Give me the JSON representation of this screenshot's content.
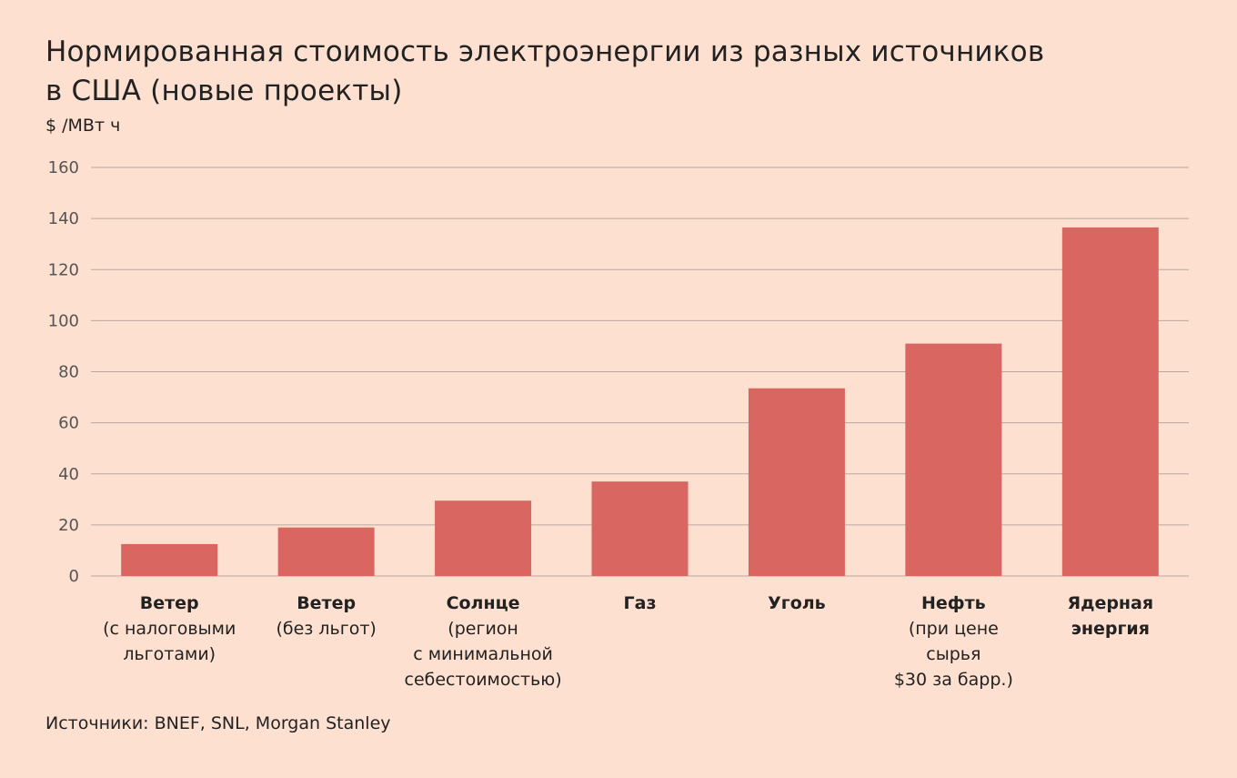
{
  "title_lines": [
    "Нормированная стоимость электроэнергии из разных источников",
    "в США (новые проекты)"
  ],
  "unit": "$ /МВт ч",
  "source": "Источники: BNEF, SNL, Morgan Stanley",
  "colors": {
    "background": "#fde0d0",
    "bar": "#d96660",
    "grid": "#b8a8a0",
    "text": "#222222",
    "tick": "#555555"
  },
  "chart_data": {
    "type": "bar",
    "title": "Нормированная стоимость электроэнергии из разных источников в США (новые проекты)",
    "ylabel": "$ /МВт ч",
    "xlabel": "",
    "ylim": [
      0,
      160
    ],
    "yticks": [
      0,
      20,
      40,
      60,
      80,
      100,
      120,
      140,
      160
    ],
    "grid": true,
    "categories": [
      {
        "bold": [
          "Ветер"
        ],
        "normal": [
          "(с налоговыми",
          "льготами)"
        ]
      },
      {
        "bold": [
          "Ветер"
        ],
        "normal": [
          "(без льгот)"
        ]
      },
      {
        "bold": [
          "Солнце"
        ],
        "normal": [
          "(регион",
          "с минимальной",
          "себестоимостью)"
        ]
      },
      {
        "bold": [
          "Газ"
        ],
        "normal": []
      },
      {
        "bold": [
          "Уголь"
        ],
        "normal": []
      },
      {
        "bold": [
          "Нефть"
        ],
        "normal": [
          "(при цене",
          "сырья",
          "$30 за барр.)"
        ]
      },
      {
        "bold": [
          "Ядерная",
          "энергия"
        ],
        "normal": []
      }
    ],
    "values": [
      12.5,
      19,
      29.5,
      37,
      73.5,
      91,
      136.5
    ]
  }
}
